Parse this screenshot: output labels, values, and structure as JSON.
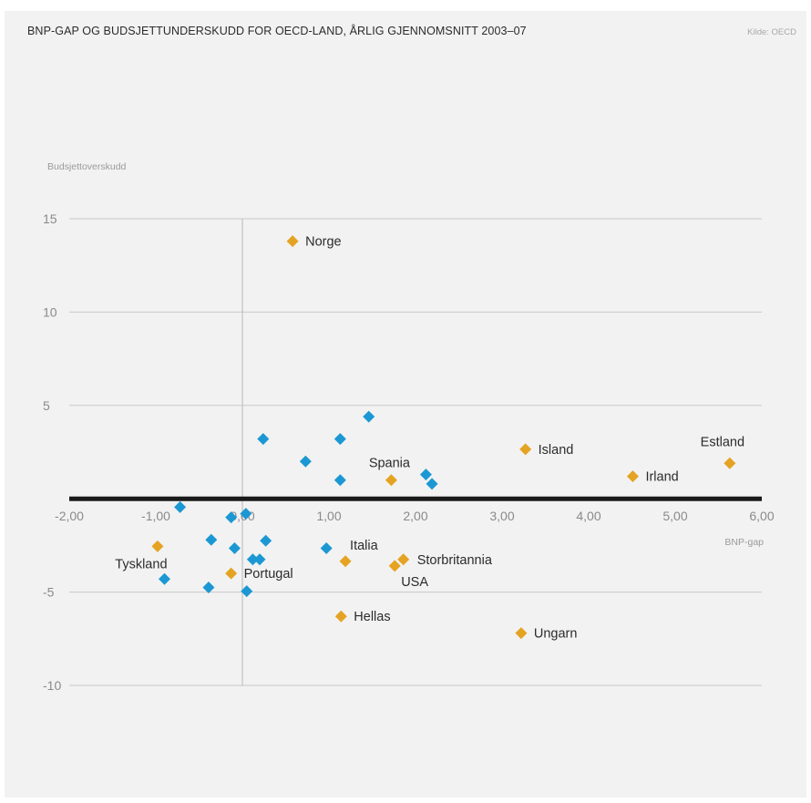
{
  "chart_data": {
    "type": "scatter",
    "title": "BNP-GAP OG BUDSJETTUNDERSKUDD FOR OECD-LAND, ÅRLIG GJENNOMSNITT 2003–07",
    "source": "Kilde: OECD",
    "xlabel": "BNP-gap",
    "ylabel": "Budsjettoverskudd",
    "xlim": [
      -2,
      6
    ],
    "ylim": [
      -10,
      15
    ],
    "x_ticks": [
      "-2,00",
      "-1,00",
      "0,00",
      "1,00",
      "2,00",
      "3,00",
      "4,00",
      "5,00",
      "6,00"
    ],
    "y_ticks": [
      "15",
      "10",
      "5",
      "-5",
      "-10"
    ],
    "grid": "horizontal",
    "colors": {
      "highlight": "#e5a323",
      "other": "#1b98d3",
      "zero_line": "#1a1a1a",
      "grid": "#c8c8c8"
    },
    "series": [
      {
        "group": "highlight",
        "points": [
          {
            "label": "Norge",
            "x": 0.58,
            "y": 13.8
          },
          {
            "label": "Island",
            "x": 3.27,
            "y": 2.65
          },
          {
            "label": "Estland",
            "x": 5.63,
            "y": 1.9
          },
          {
            "label": "Irland",
            "x": 4.51,
            "y": 1.2
          },
          {
            "label": "Spania",
            "x": 1.72,
            "y": 1.0
          },
          {
            "label": "Tyskland",
            "x": -0.98,
            "y": -2.55
          },
          {
            "label": "Portugal",
            "x": -0.13,
            "y": -4.0
          },
          {
            "label": "Italia",
            "x": 1.19,
            "y": -3.35
          },
          {
            "label": "Storbritannia",
            "x": 1.86,
            "y": -3.25
          },
          {
            "label": "USA",
            "x": 1.76,
            "y": -3.6
          },
          {
            "label": "Hellas",
            "x": 1.14,
            "y": -6.3
          },
          {
            "label": "Ungarn",
            "x": 3.22,
            "y": -7.2
          }
        ]
      },
      {
        "group": "other",
        "points": [
          {
            "x": 1.46,
            "y": 4.4
          },
          {
            "x": 0.24,
            "y": 3.2
          },
          {
            "x": 1.13,
            "y": 3.2
          },
          {
            "x": 0.73,
            "y": 2.0
          },
          {
            "x": 1.13,
            "y": 1.0
          },
          {
            "x": 2.12,
            "y": 1.3
          },
          {
            "x": 2.19,
            "y": 0.8
          },
          {
            "x": -0.72,
            "y": -0.45
          },
          {
            "x": -0.13,
            "y": -1.0
          },
          {
            "x": 0.04,
            "y": -0.8
          },
          {
            "x": -0.36,
            "y": -2.2
          },
          {
            "x": -0.09,
            "y": -2.65
          },
          {
            "x": 0.27,
            "y": -2.25
          },
          {
            "x": 0.12,
            "y": -3.25
          },
          {
            "x": 0.2,
            "y": -3.25
          },
          {
            "x": 0.97,
            "y": -2.65
          },
          {
            "x": -0.9,
            "y": -4.3
          },
          {
            "x": -0.39,
            "y": -4.75
          },
          {
            "x": 0.05,
            "y": -4.95
          }
        ]
      }
    ]
  }
}
